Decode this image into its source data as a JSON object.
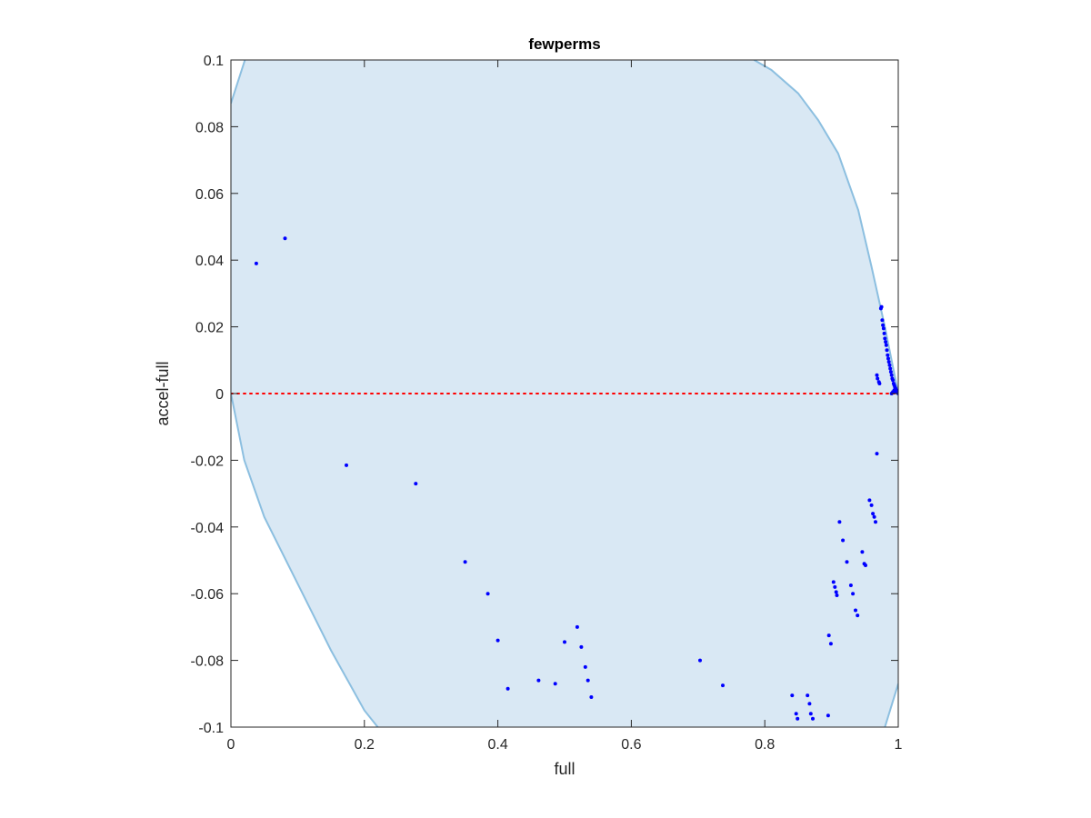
{
  "chart_data": {
    "type": "scatter",
    "title": "fewperms",
    "xlabel": "full",
    "ylabel": "accel-full",
    "xlim": [
      0,
      1
    ],
    "ylim": [
      -0.1,
      0.1
    ],
    "x_ticks": [
      "0",
      "0.2",
      "0.4",
      "0.6",
      "0.8",
      "1"
    ],
    "y_ticks": [
      "-0.1",
      "-0.08",
      "-0.06",
      "-0.04",
      "-0.02",
      "0",
      "0.02",
      "0.04",
      "0.06",
      "0.08",
      "0.1"
    ],
    "grid": false,
    "reference_line": {
      "y": 0,
      "style": "dotted",
      "color": "#ff0000"
    },
    "region": {
      "description": "shaded region bounded by curves",
      "fill_color": "#d9e8f4",
      "edge_color": "#8cbfe0",
      "left_boundary": [
        [
          0.0,
          0.087
        ],
        [
          0.021,
          0.1
        ]
      ],
      "upper_left_boundary": [
        [
          0.0,
          0.0
        ],
        [
          0.02,
          -0.02
        ],
        [
          0.05,
          -0.037
        ],
        [
          0.1,
          -0.057
        ],
        [
          0.15,
          -0.077
        ],
        [
          0.2,
          -0.095
        ],
        [
          0.22,
          -0.1
        ]
      ],
      "right_boundary": [
        [
          0.784,
          0.1
        ],
        [
          0.81,
          0.097
        ],
        [
          0.85,
          0.09
        ],
        [
          0.88,
          0.082
        ],
        [
          0.91,
          0.072
        ],
        [
          0.94,
          0.055
        ],
        [
          0.96,
          0.038
        ],
        [
          0.98,
          0.02
        ],
        [
          1.0,
          0.0
        ]
      ],
      "lower_right_boundary": [
        [
          0.98,
          -0.1
        ],
        [
          1.0,
          -0.087
        ]
      ]
    },
    "points": [
      [
        0.038,
        0.039
      ],
      [
        0.081,
        0.0465
      ],
      [
        0.173,
        -0.0215
      ],
      [
        0.277,
        -0.027
      ],
      [
        0.351,
        -0.0505
      ],
      [
        0.385,
        -0.06
      ],
      [
        0.4,
        -0.074
      ],
      [
        0.415,
        -0.0885
      ],
      [
        0.461,
        -0.086
      ],
      [
        0.486,
        -0.087
      ],
      [
        0.5,
        -0.0745
      ],
      [
        0.519,
        -0.07
      ],
      [
        0.525,
        -0.076
      ],
      [
        0.531,
        -0.082
      ],
      [
        0.535,
        -0.086
      ],
      [
        0.54,
        -0.091
      ],
      [
        0.703,
        -0.08
      ],
      [
        0.737,
        -0.0875
      ],
      [
        0.841,
        -0.0905
      ],
      [
        0.847,
        -0.096
      ],
      [
        0.849,
        -0.0975
      ],
      [
        0.864,
        -0.0905
      ],
      [
        0.867,
        -0.093
      ],
      [
        0.869,
        -0.096
      ],
      [
        0.872,
        -0.0975
      ],
      [
        0.895,
        -0.0965
      ],
      [
        0.896,
        -0.0725
      ],
      [
        0.899,
        -0.075
      ],
      [
        0.903,
        -0.0565
      ],
      [
        0.905,
        -0.058
      ],
      [
        0.907,
        -0.0595
      ],
      [
        0.908,
        -0.0605
      ],
      [
        0.912,
        -0.0385
      ],
      [
        0.917,
        -0.044
      ],
      [
        0.923,
        -0.0505
      ],
      [
        0.929,
        -0.0575
      ],
      [
        0.932,
        -0.06
      ],
      [
        0.936,
        -0.065
      ],
      [
        0.939,
        -0.0665
      ],
      [
        0.946,
        -0.0475
      ],
      [
        0.949,
        -0.051
      ],
      [
        0.951,
        -0.0515
      ],
      [
        0.957,
        -0.032
      ],
      [
        0.96,
        -0.0335
      ],
      [
        0.962,
        -0.036
      ],
      [
        0.964,
        -0.037
      ],
      [
        0.966,
        -0.0385
      ],
      [
        0.968,
        -0.018
      ],
      [
        0.968,
        0.0055
      ],
      [
        0.969,
        0.0045
      ],
      [
        0.971,
        0.0035
      ],
      [
        0.972,
        0.003
      ],
      [
        0.974,
        0.0255
      ],
      [
        0.975,
        0.026
      ],
      [
        0.976,
        0.022
      ],
      [
        0.977,
        0.0205
      ],
      [
        0.978,
        0.0195
      ],
      [
        0.979,
        0.018
      ],
      [
        0.98,
        0.0165
      ],
      [
        0.981,
        0.0155
      ],
      [
        0.982,
        0.0145
      ],
      [
        0.983,
        0.013
      ],
      [
        0.984,
        0.0115
      ],
      [
        0.985,
        0.0105
      ],
      [
        0.986,
        0.0095
      ],
      [
        0.987,
        0.0085
      ],
      [
        0.988,
        0.0075
      ],
      [
        0.989,
        0.0065
      ],
      [
        0.99,
        0.0055
      ],
      [
        0.991,
        0.0045
      ],
      [
        0.992,
        0.004
      ],
      [
        0.993,
        0.003
      ],
      [
        0.994,
        0.0025
      ],
      [
        0.995,
        0.002
      ],
      [
        0.996,
        0.0015
      ],
      [
        0.997,
        0.001
      ],
      [
        0.998,
        0.0005
      ],
      [
        0.999,
        0.0002
      ],
      [
        1.0,
        0.0
      ],
      [
        0.99,
        0.0
      ],
      [
        0.992,
        0.0005
      ],
      [
        0.994,
        0.001
      ],
      [
        0.996,
        0.0005
      ]
    ],
    "marker_color": "#0000ff"
  }
}
